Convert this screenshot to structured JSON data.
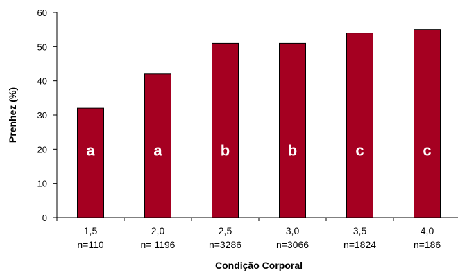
{
  "chart_data": {
    "type": "bar",
    "categories": [
      "1,5",
      "2,0",
      "2,5",
      "3,0",
      "3,5",
      "4,0"
    ],
    "sample_sizes": [
      "n=110",
      "n= 1196",
      "n=3286",
      "n=3066",
      "n=1824",
      "n=186"
    ],
    "values": [
      32,
      42,
      51,
      51,
      54,
      55
    ],
    "bar_labels": [
      "a",
      "a",
      "b",
      "b",
      "c",
      "c"
    ],
    "title": "",
    "xlabel": "Condição Corporal",
    "ylabel": "Prenhez (%)",
    "ylim": [
      0,
      60
    ],
    "yticks": [
      0,
      10,
      20,
      30,
      40,
      50,
      60
    ],
    "grid": false,
    "bar_color": "#A50021",
    "bar_label_color": "#FFFFFF"
  }
}
